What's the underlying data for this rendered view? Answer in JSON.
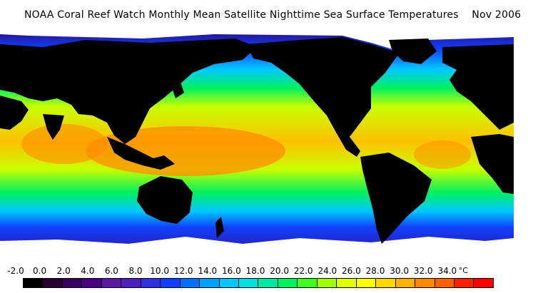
{
  "title": "NOAA Coral Reef Watch Monthly Mean Satellite Nighttime Sea Surface Temperatures",
  "date": "Nov 2006",
  "colorbar": {
    "unit": "°C",
    "labels": [
      "-2.0",
      "0.0",
      "2.0",
      "4.0",
      "6.0",
      "8.0",
      "10.0",
      "12.0",
      "14.0",
      "16.0",
      "18.0",
      "20.0",
      "22.0",
      "24.0",
      "26.0",
      "28.0",
      "30.0",
      "32.0",
      "34.0"
    ],
    "colors": [
      "#000000",
      "#2a0030",
      "#3a0060",
      "#4b0082",
      "#5a1aa0",
      "#4c1fc0",
      "#3030e0",
      "#1040ff",
      "#0070ff",
      "#00a0ff",
      "#00c8ff",
      "#00e0e0",
      "#00e8a0",
      "#00f060",
      "#40ff20",
      "#a0ff00",
      "#e0ff00",
      "#ffff00",
      "#ffd800",
      "#ffb000",
      "#ff8800",
      "#ff6000",
      "#ff2000",
      "#ff0000"
    ]
  },
  "map": {
    "ocean_bands": [
      {
        "label": "arctic",
        "color": "#2d0a7a"
      },
      {
        "label": "north-cold",
        "color": "#1040ff"
      },
      {
        "label": "north-cool",
        "color": "#00c8ff"
      },
      {
        "label": "north-mild",
        "color": "#00f060"
      },
      {
        "label": "subtropic-n",
        "color": "#c8ff00"
      },
      {
        "label": "tropic",
        "color": "#ffc000"
      },
      {
        "label": "subtropic-s",
        "color": "#c8ff00"
      },
      {
        "label": "south-mild",
        "color": "#00f060"
      },
      {
        "label": "south-cool",
        "color": "#00c8ff"
      },
      {
        "label": "south-cold",
        "color": "#1040ff"
      },
      {
        "label": "antarctic",
        "color": "#3a0a80"
      }
    ],
    "land_color": "#000000",
    "ice_color": "#ffffff",
    "warm_pool_color": "#ff8c00"
  }
}
